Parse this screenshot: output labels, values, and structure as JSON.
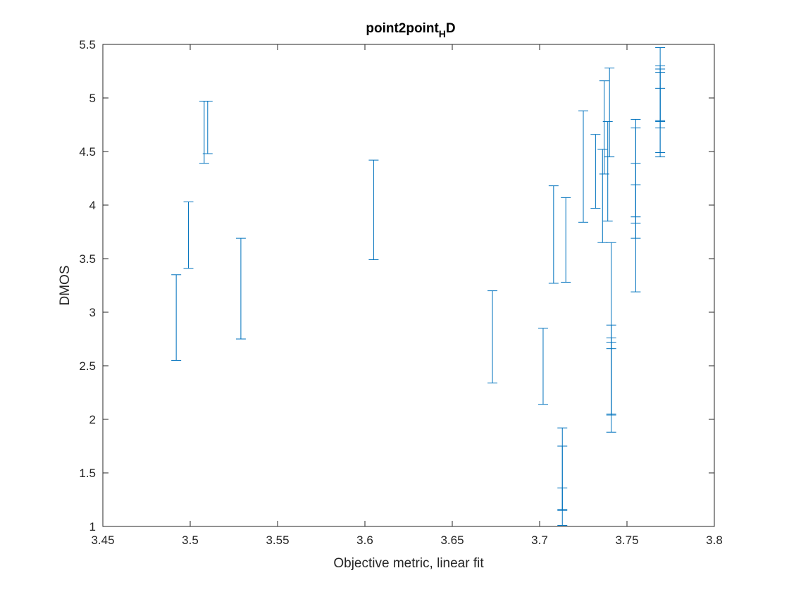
{
  "chart_data": {
    "type": "scatter",
    "subtype": "errorbar",
    "title": {
      "main": "point2point",
      "sub": "H",
      "tail": "D"
    },
    "xlabel": "Objective metric, linear fit",
    "ylabel": "DMOS",
    "xlim": [
      3.45,
      3.8
    ],
    "ylim": [
      1,
      5.5
    ],
    "xticks": [
      "3.45",
      "3.5",
      "3.55",
      "3.6",
      "3.65",
      "3.7",
      "3.75",
      "3.8"
    ],
    "yticks": [
      "1",
      "1.5",
      "2",
      "2.5",
      "3",
      "3.5",
      "4",
      "4.5",
      "5",
      "5.5"
    ],
    "grid": false,
    "color": "#0072BD",
    "series": [
      {
        "errorbars": [
          {
            "x": 3.492,
            "low": 2.55,
            "high": 3.35
          },
          {
            "x": 3.499,
            "low": 3.41,
            "high": 4.03
          },
          {
            "x": 3.508,
            "low": 4.39,
            "high": 4.97
          },
          {
            "x": 3.51,
            "low": 4.48,
            "high": 4.97
          },
          {
            "x": 3.529,
            "low": 2.75,
            "high": 3.69
          },
          {
            "x": 3.605,
            "low": 3.49,
            "high": 4.42
          },
          {
            "x": 3.673,
            "low": 2.34,
            "high": 3.2
          },
          {
            "x": 3.702,
            "low": 2.14,
            "high": 2.85
          },
          {
            "x": 3.708,
            "low": 3.27,
            "high": 4.18
          },
          {
            "x": 3.713,
            "low": 1.01,
            "high": 1.75
          },
          {
            "x": 3.713,
            "low": 1.16,
            "high": 1.92
          },
          {
            "x": 3.713,
            "low": 1.15,
            "high": 1.36
          },
          {
            "x": 3.715,
            "low": 3.28,
            "high": 4.07
          },
          {
            "x": 3.725,
            "low": 3.84,
            "high": 4.88
          },
          {
            "x": 3.732,
            "low": 3.97,
            "high": 4.66
          },
          {
            "x": 3.736,
            "low": 3.65,
            "high": 4.52
          },
          {
            "x": 3.737,
            "low": 4.29,
            "high": 5.16
          },
          {
            "x": 3.739,
            "low": 3.85,
            "high": 4.78
          },
          {
            "x": 3.74,
            "low": 4.45,
            "high": 5.28
          },
          {
            "x": 3.741,
            "low": 2.04,
            "high": 2.88
          },
          {
            "x": 3.741,
            "low": 1.88,
            "high": 2.76
          },
          {
            "x": 3.741,
            "low": 2.05,
            "high": 2.72
          },
          {
            "x": 3.741,
            "low": 2.66,
            "high": 3.65
          },
          {
            "x": 3.755,
            "low": 3.83,
            "high": 4.72
          },
          {
            "x": 3.755,
            "low": 3.69,
            "high": 4.8
          },
          {
            "x": 3.755,
            "low": 3.19,
            "high": 4.19
          },
          {
            "x": 3.755,
            "low": 3.89,
            "high": 4.39
          },
          {
            "x": 3.769,
            "low": 4.79,
            "high": 5.47
          },
          {
            "x": 3.769,
            "low": 4.72,
            "high": 5.3
          },
          {
            "x": 3.769,
            "low": 4.45,
            "high": 5.27
          },
          {
            "x": 3.769,
            "low": 4.49,
            "high": 5.24
          },
          {
            "x": 3.769,
            "low": 4.78,
            "high": 5.09
          }
        ]
      }
    ]
  }
}
